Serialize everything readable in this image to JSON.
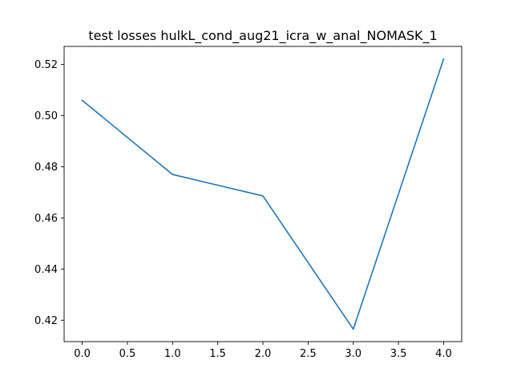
{
  "chart_data": {
    "type": "line",
    "title": "test losses hulkL_cond_aug21_icra_w_anal_NOMASK_1",
    "xlabel": "",
    "ylabel": "",
    "x": [
      0.0,
      1.0,
      2.0,
      3.0,
      4.0
    ],
    "series": [
      {
        "values": [
          0.506,
          0.477,
          0.4686,
          0.4165,
          0.5222
        ],
        "color": "#1f77b4"
      }
    ],
    "xlim": [
      -0.2,
      4.2
    ],
    "ylim": [
      0.41163,
      0.52709
    ],
    "xticks": [
      0.0,
      0.5,
      1.0,
      1.5,
      2.0,
      2.5,
      3.0,
      3.5,
      4.0
    ],
    "xtick_labels": [
      "0.0",
      "0.5",
      "1.0",
      "1.5",
      "2.0",
      "2.5",
      "3.0",
      "3.5",
      "4.0"
    ],
    "yticks": [
      0.42,
      0.44,
      0.46,
      0.48,
      0.5,
      0.52
    ],
    "ytick_labels": [
      "0.42",
      "0.44",
      "0.46",
      "0.48",
      "0.50",
      "0.52"
    ],
    "grid": false,
    "legend": "none"
  }
}
